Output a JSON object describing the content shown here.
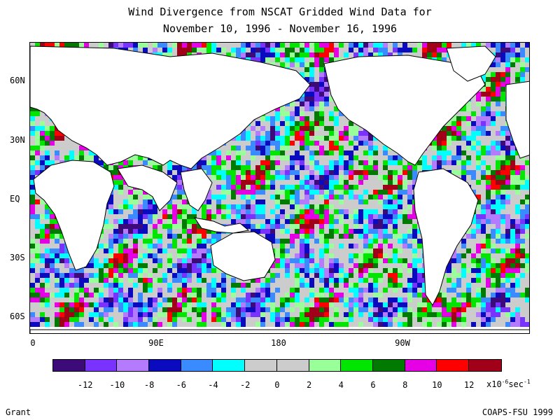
{
  "title": {
    "line1": "Wind Divergence from NSCAT Gridded Wind Data for",
    "line2": "November 10, 1996 - November 16, 1996"
  },
  "latitude_labels": [
    "60N",
    "30N",
    "EQ",
    "30S",
    "60S"
  ],
  "longitude_labels": [
    "0",
    "90E",
    "180",
    "90W"
  ],
  "colorbar": {
    "colors": [
      "#3d0a7a",
      "#7a33ff",
      "#b57bff",
      "#0a0abf",
      "#3a8bff",
      "#00ffff",
      "#cccccc",
      "#cccccc",
      "#99ff99",
      "#00e600",
      "#007a00",
      "#e600e6",
      "#ff0000",
      "#a00018"
    ],
    "tick_labels": [
      "-12",
      "-10",
      "-8",
      "-6",
      "-4",
      "-2",
      "0",
      "2",
      "4",
      "6",
      "8",
      "10",
      "12"
    ],
    "unit_prefix": "x10",
    "unit_exp": "-6",
    "unit_suffix": "sec",
    "unit_suffix_exp": "-1"
  },
  "footer": {
    "left": "Grant",
    "right": "COAPS-FSU 1999"
  }
}
